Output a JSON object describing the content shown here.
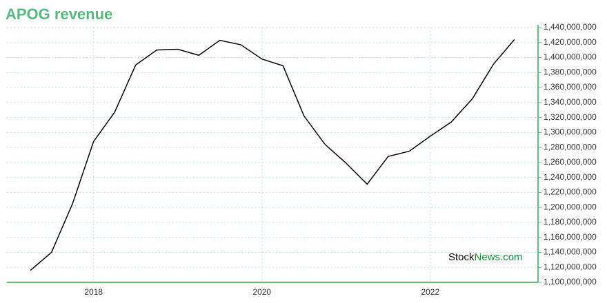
{
  "chart_data": {
    "type": "line",
    "title": "APOG revenue",
    "x": [
      2017.25,
      2017.5,
      2017.75,
      2018.0,
      2018.25,
      2018.5,
      2018.75,
      2019.0,
      2019.25,
      2019.5,
      2019.75,
      2020.0,
      2020.25,
      2020.5,
      2020.75,
      2021.0,
      2021.25,
      2021.5,
      2021.75,
      2022.0,
      2022.25,
      2022.5,
      2022.75,
      2023.0
    ],
    "series": [
      {
        "name": "APOG revenue",
        "color": "#000000",
        "values": [
          1116000000,
          1140000000,
          1205000000,
          1288000000,
          1327000000,
          1390000000,
          1410000000,
          1411000000,
          1403000000,
          1423000000,
          1417000000,
          1398000000,
          1389000000,
          1322000000,
          1284000000,
          1259000000,
          1231000000,
          1268000000,
          1275000000,
          1295000000,
          1314000000,
          1345000000,
          1391000000,
          1424000000
        ]
      }
    ],
    "xlim": [
      2016.97,
      2023.28
    ],
    "xticks": [
      2018,
      2020,
      2022
    ],
    "ylim": [
      1100000000,
      1440000000
    ],
    "yticks": [
      {
        "value": 1100000000,
        "label": "1,100,000,000"
      },
      {
        "value": 1120000000,
        "label": "1,120,000,000"
      },
      {
        "value": 1140000000,
        "label": "1,140,000,000"
      },
      {
        "value": 1160000000,
        "label": "1,160,000,000"
      },
      {
        "value": 1180000000,
        "label": "1,180,000,000"
      },
      {
        "value": 1200000000,
        "label": "1,200,000,000"
      },
      {
        "value": 1220000000,
        "label": "1,220,000,000"
      },
      {
        "value": 1240000000,
        "label": "1,240,000,000"
      },
      {
        "value": 1260000000,
        "label": "1,260,000,000"
      },
      {
        "value": 1280000000,
        "label": "1,280,000,000"
      },
      {
        "value": 1300000000,
        "label": "1,300,000,000"
      },
      {
        "value": 1320000000,
        "label": "1,320,000,000"
      },
      {
        "value": 1340000000,
        "label": "1,340,000,000"
      },
      {
        "value": 1360000000,
        "label": "1,360,000,000"
      },
      {
        "value": 1380000000,
        "label": "1,380,000,000"
      },
      {
        "value": 1400000000,
        "label": "1,400,000,000"
      },
      {
        "value": 1420000000,
        "label": "1,420,000,000"
      },
      {
        "value": 1440000000,
        "label": "1,440,000,000"
      }
    ],
    "grid": true,
    "axis_color": "#5fbf7f",
    "watermark": {
      "prefix": "Stock",
      "suffix": "News.com"
    }
  }
}
